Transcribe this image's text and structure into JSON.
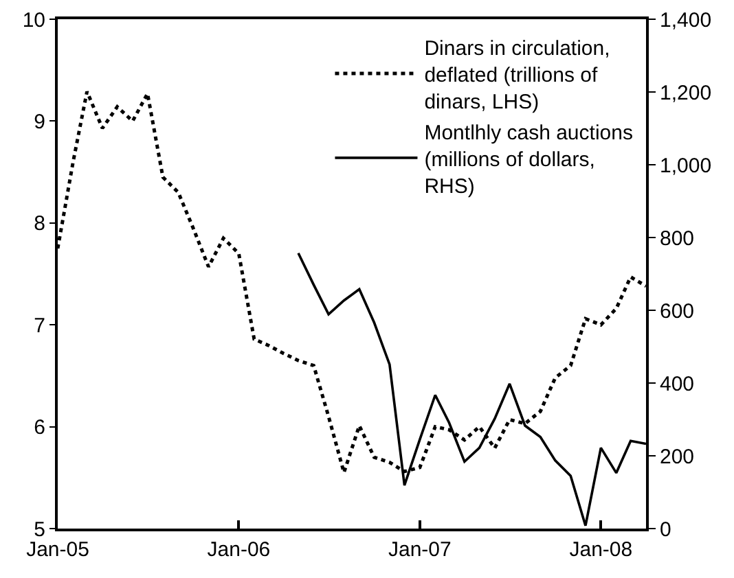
{
  "chart_data": {
    "type": "line",
    "x": [
      "2005-01",
      "2005-02",
      "2005-03",
      "2005-04",
      "2005-05",
      "2005-06",
      "2005-07",
      "2005-08",
      "2005-09",
      "2005-10",
      "2005-11",
      "2005-12",
      "2006-01",
      "2006-02",
      "2006-03",
      "2006-04",
      "2006-05",
      "2006-06",
      "2006-07",
      "2006-08",
      "2006-09",
      "2006-10",
      "2006-11",
      "2006-12",
      "2007-01",
      "2007-02",
      "2007-03",
      "2007-04",
      "2007-05",
      "2007-06",
      "2007-07",
      "2007-08",
      "2007-09",
      "2007-10",
      "2007-11",
      "2007-12",
      "2008-01",
      "2008-02",
      "2008-03",
      "2008-04"
    ],
    "series": [
      {
        "name": "Dinars in circulation, deflated (trillions of dinars, LHS)",
        "color": "#000000",
        "line_style": "dotted",
        "values": [
          7.75,
          8.6,
          9.29,
          8.93,
          9.14,
          9.0,
          9.27,
          8.45,
          8.3,
          7.95,
          7.57,
          7.85,
          7.7,
          6.86,
          6.8,
          6.72,
          6.65,
          6.6,
          6.1,
          5.55,
          6.01,
          5.7,
          5.65,
          5.56,
          5.6,
          6.0,
          5.97,
          5.87,
          6.0,
          5.79,
          6.07,
          6.03,
          6.15,
          6.48,
          6.6,
          7.06,
          7.0,
          7.16,
          7.47,
          7.38
        ]
      },
      {
        "name": "Montlhly cash auctions (millions of dollars, RHS)",
        "color": "#000000",
        "line_style": "solid",
        "axis": "y2",
        "values": [
          null,
          null,
          null,
          null,
          null,
          null,
          null,
          null,
          null,
          null,
          null,
          null,
          null,
          null,
          null,
          null,
          757,
          670,
          589,
          627,
          658,
          566,
          451,
          119,
          245,
          367,
          291,
          184,
          222,
          302,
          398,
          283,
          252,
          187,
          145,
          8,
          222,
          153,
          241,
          233
        ]
      }
    ],
    "xlim": [
      "2005-01",
      "2008-04"
    ],
    "xticks": [
      {
        "value": "2005-01",
        "label": "Jan-05"
      },
      {
        "value": "2006-01",
        "label": "Jan-06"
      },
      {
        "value": "2007-01",
        "label": "Jan-07"
      },
      {
        "value": "2008-01",
        "label": "Jan-08"
      }
    ],
    "ylim": [
      5,
      10
    ],
    "yticks": [
      5,
      6,
      7,
      8,
      9,
      10
    ],
    "y2lim": [
      0,
      1400
    ],
    "y2ticks": [
      0,
      200,
      400,
      600,
      800,
      {
        "value": 1000,
        "label": "1,000"
      },
      {
        "value": 1200,
        "label": "1,200"
      },
      {
        "value": 1400,
        "label": "1,400"
      }
    ],
    "grid": false,
    "legend": "top right",
    "marker": "none"
  }
}
